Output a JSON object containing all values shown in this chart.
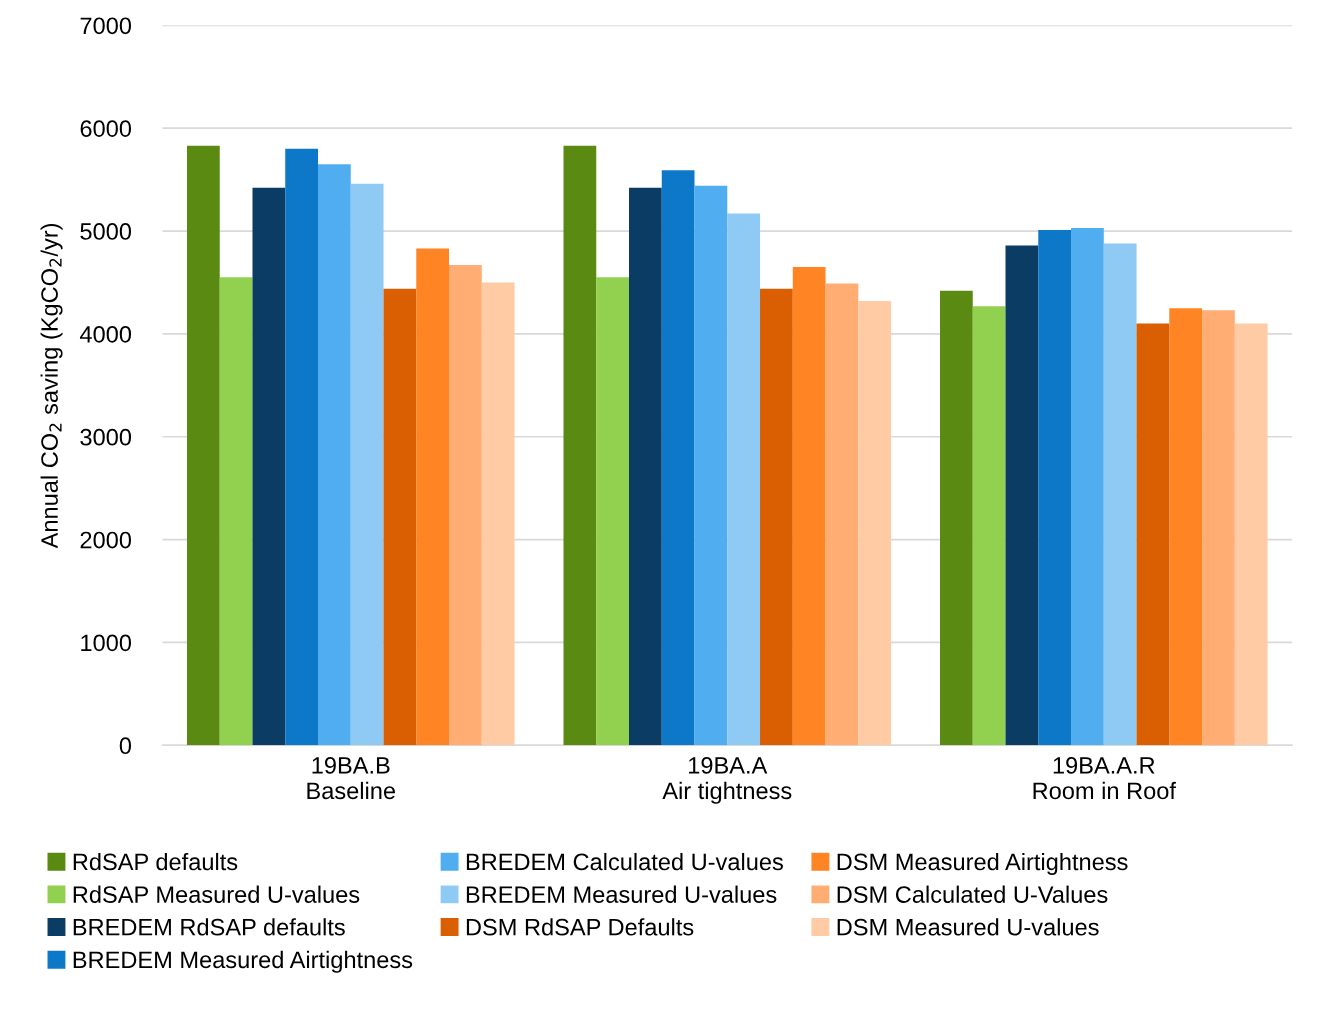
{
  "chart_data": {
    "type": "bar",
    "ylabel": "Annual CO$_{2}$ saving (KgCO$_{2}$/yr)",
    "categories": [
      "19BA.B\nBaseline",
      "19BA.A\nAir tightness",
      "19BA.A.R\nRoom in Roof"
    ],
    "ylim": [
      0,
      7000
    ],
    "yticks": [
      0,
      1000,
      2000,
      3000,
      4000,
      5000,
      6000,
      7000
    ],
    "grid": "y",
    "legend": "bottom",
    "series": [
      {
        "name": "RdSAP defaults",
        "color": "#5a8a12",
        "values": [
          5830,
          5830,
          4420
        ]
      },
      {
        "name": "RdSAP Measured U-values",
        "color": "#92d050",
        "values": [
          4550,
          4550,
          4270
        ]
      },
      {
        "name": "BREDEM RdSAP defaults",
        "color": "#0a3c64",
        "values": [
          5420,
          5420,
          4860
        ]
      },
      {
        "name": "BREDEM Measured Airtightness",
        "color": "#0e78c8",
        "values": [
          5800,
          5590,
          5010
        ]
      },
      {
        "name": "BREDEM Calculated U-values",
        "color": "#4fadf0",
        "values": [
          5650,
          5440,
          5030
        ]
      },
      {
        "name": "BREDEM Measured U-values",
        "color": "#8fcaf5",
        "values": [
          5460,
          5170,
          4880
        ]
      },
      {
        "name": "DSM RdSAP Defaults",
        "color": "#d95f02",
        "values": [
          4440,
          4440,
          4100
        ]
      },
      {
        "name": "DSM Measured Airtightness",
        "color": "#ff8424",
        "values": [
          4830,
          4650,
          4250
        ]
      },
      {
        "name": "DSM Calculated U-Values",
        "color": "#ffad73",
        "values": [
          4670,
          4490,
          4230
        ]
      },
      {
        "name": "DSM Measured U-values",
        "color": "#ffcba4",
        "values": [
          4500,
          4320,
          4100
        ]
      }
    ]
  }
}
